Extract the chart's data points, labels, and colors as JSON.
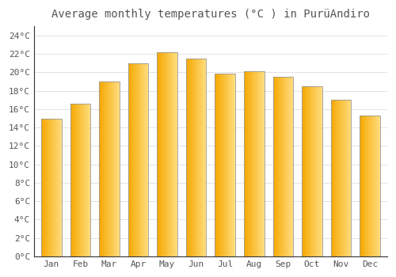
{
  "title": "Average monthly temperatures (°C ) in PurüAndiro",
  "months": [
    "Jan",
    "Feb",
    "Mar",
    "Apr",
    "May",
    "Jun",
    "Jul",
    "Aug",
    "Sep",
    "Oct",
    "Nov",
    "Dec"
  ],
  "values": [
    15.0,
    16.6,
    19.0,
    21.0,
    22.2,
    21.5,
    19.9,
    20.1,
    19.5,
    18.5,
    17.0,
    15.3
  ],
  "bar_color_bottom": "#F5A800",
  "bar_color_top": "#FFDD80",
  "bar_edge_color": "#888888",
  "background_color": "#FFFFFF",
  "plot_bg_color": "#F8F8F8",
  "grid_color": "#DDDDDD",
  "text_color": "#555555",
  "ylim": [
    0,
    25
  ],
  "ytick_step": 2,
  "title_fontsize": 10,
  "tick_fontsize": 8,
  "figsize": [
    5.0,
    3.5
  ],
  "dpi": 100
}
